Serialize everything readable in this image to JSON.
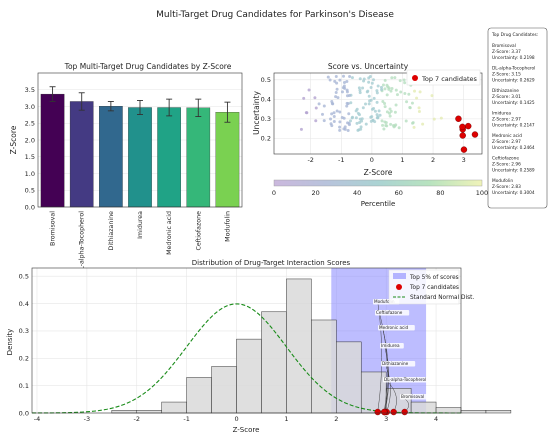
{
  "figure_title": "Multi-Target Drug Candidates for Parkinson's Disease",
  "chart_data": [
    {
      "type": "bar",
      "title": "Top Multi-Target Drug Candidates by Z-Score",
      "xlabel": "",
      "ylabel": "Z-Score",
      "ylim": [
        0,
        4.0
      ],
      "yticks": [
        "0.0",
        "0.5",
        "1.0",
        "1.5",
        "2.0",
        "2.5",
        "3.0",
        "3.5"
      ],
      "categories": [
        "Bromisoval",
        "DL-alpha-Tocopherol",
        "Dithiazanine",
        "Imidurea",
        "Medronic acid",
        "Ceftiofazone",
        "Modufolin"
      ],
      "values": [
        3.37,
        3.15,
        3.01,
        2.97,
        2.97,
        2.96,
        2.83
      ],
      "errors": [
        0.22,
        0.26,
        0.14,
        0.21,
        0.25,
        0.26,
        0.3
      ],
      "colors": [
        "#440154",
        "#443a83",
        "#31688e",
        "#21918c",
        "#20a386",
        "#35b779",
        "#7ad151"
      ],
      "grid": true
    },
    {
      "type": "scatter",
      "title": "Score vs. Uncertainty",
      "xlabel": "Z-Score",
      "ylabel": "Uncertainty",
      "xlim": [
        -3.2,
        3.6
      ],
      "ylim": [
        0.12,
        0.535
      ],
      "xticks": [
        "-2",
        "-1",
        "0",
        "1",
        "2",
        "3"
      ],
      "yticks": [
        "0.2",
        "0.3",
        "0.4",
        "0.5"
      ],
      "legend": [
        "Top 7 candidates"
      ],
      "legend_position": "top-right",
      "colorbar_label": "Percentile",
      "colorbar_ticks": [
        "0",
        "20",
        "40",
        "60",
        "80",
        "100"
      ],
      "top7_points": [
        [
          3.37,
          0.2198
        ],
        [
          3.15,
          0.2629
        ],
        [
          3.01,
          0.1425
        ],
        [
          2.97,
          0.2147
        ],
        [
          2.97,
          0.2464
        ],
        [
          2.96,
          0.2589
        ],
        [
          2.83,
          0.3004
        ]
      ],
      "background_points": 190,
      "grid": true
    },
    {
      "type": "histogram",
      "title": "Distribution of Drug-Target Interaction Scores",
      "xlabel": "Z-Score",
      "ylabel": "Density",
      "xlim": [
        -4.1,
        4.5
      ],
      "ylim": [
        0,
        0.53
      ],
      "xticks": [
        "-4",
        "-3",
        "-2",
        "-1",
        "0",
        "1",
        "2",
        "3",
        "4"
      ],
      "yticks": [
        "0.0",
        "0.1",
        "0.2",
        "0.3",
        "0.4",
        "0.5"
      ],
      "bin_width": 0.5,
      "bins_start": -2.5,
      "densities": [
        0.01,
        0.01,
        0.04,
        0.13,
        0.17,
        0.27,
        0.37,
        0.49,
        0.34,
        0.26,
        0.15,
        0.09,
        0.04,
        0.02,
        0.01,
        0.01
      ],
      "highlight_span": [
        1.9,
        3.8
      ],
      "top7_x": [
        3.37,
        3.15,
        3.01,
        2.97,
        2.97,
        2.96,
        2.83
      ],
      "point_labels": [
        "Modufolin",
        "Ceftiofazone",
        "Medronic acid",
        "Imidurea",
        "Dithiazanine",
        "DL-alpha-Tocopherol",
        "Bromisoval"
      ],
      "legend": [
        "Top 5% of scores",
        "Top 7 candidates",
        "Standard Normal Dist."
      ],
      "legend_position": "top-right",
      "grid": true
    }
  ],
  "info_box": {
    "title": "Top Drug Candidates:",
    "entries": [
      {
        "name": "Bromisoval",
        "z": "Z-Score: 3.37",
        "u": "Uncertainty: 0.2198"
      },
      {
        "name": "DL-alpha-Tocopherol",
        "z": "Z-Score: 3.15",
        "u": "Uncertainty: 0.2629"
      },
      {
        "name": "Dithiazanine",
        "z": "Z-Score: 3.01",
        "u": "Uncertainty: 0.1425"
      },
      {
        "name": "Imidurea",
        "z": "Z-Score: 2.97",
        "u": "Uncertainty: 0.2147"
      },
      {
        "name": "Medronic acid",
        "z": "Z-Score: 2.97",
        "u": "Uncertainty: 0.2464"
      },
      {
        "name": "Ceftiofazone",
        "z": "Z-Score: 2.96",
        "u": "Uncertainty: 0.2589"
      },
      {
        "name": "Modufolin",
        "z": "Z-Score: 2.83",
        "u": "Uncertainty: 0.3004"
      }
    ]
  }
}
